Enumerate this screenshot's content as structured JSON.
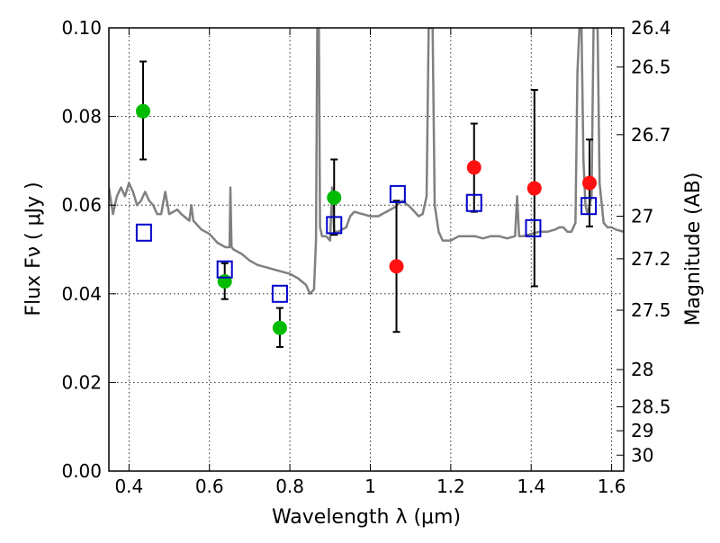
{
  "chart_data": {
    "type": "scatter",
    "xlabel": "Wavelength  λ (μm)",
    "ylabel": "Flux  Fν  ( μJy )",
    "ylabel_right": "Magnitude (AB)",
    "xlim": [
      0.35,
      1.63
    ],
    "ylim": [
      0.0,
      0.1
    ],
    "grid": true,
    "x_ticks": [
      0.4,
      0.6,
      0.8,
      1.0,
      1.2,
      1.4,
      1.6
    ],
    "x_tick_labels": [
      "0.4",
      "0.6",
      "0.8",
      "1",
      "1.2",
      "1.4",
      "1.6"
    ],
    "y_ticks": [
      0.0,
      0.02,
      0.04,
      0.06,
      0.08,
      0.1
    ],
    "y_tick_labels": [
      "0.00",
      "0.02",
      "0.04",
      "0.06",
      "0.08",
      "0.10"
    ],
    "right_axis_ticks": [
      {
        "label": "26.4",
        "flux": 0.1
      },
      {
        "label": "26.5",
        "flux": 0.0912
      },
      {
        "label": "26.7",
        "flux": 0.0759
      },
      {
        "label": "27",
        "flux": 0.0575
      },
      {
        "label": "27.2",
        "flux": 0.0479
      },
      {
        "label": "27.5",
        "flux": 0.0363
      },
      {
        "label": "28",
        "flux": 0.0229
      },
      {
        "label": "28.5",
        "flux": 0.0145
      },
      {
        "label": "29",
        "flux": 0.0091
      },
      {
        "label": "30",
        "flux": 0.0036
      }
    ],
    "series": [
      {
        "marker": "circle",
        "color": "#00bb00",
        "points": [
          {
            "x": 0.435,
            "y": 0.0812,
            "err": [
              0.0703,
              0.0924
            ]
          },
          {
            "x": 0.638,
            "y": 0.0428,
            "err": [
              0.0388,
              0.0469
            ]
          },
          {
            "x": 0.775,
            "y": 0.0323,
            "err": [
              0.028,
              0.0368
            ]
          },
          {
            "x": 0.91,
            "y": 0.0617,
            "err": [
              0.0533,
              0.0703
            ]
          }
        ]
      },
      {
        "marker": "circle",
        "color": "#ff1111",
        "points": [
          {
            "x": 1.065,
            "y": 0.0462,
            "err": [
              0.0314,
              0.061
            ]
          },
          {
            "x": 1.258,
            "y": 0.0685,
            "err": [
              0.0585,
              0.0784
            ]
          },
          {
            "x": 1.408,
            "y": 0.0638,
            "err": [
              0.0417,
              0.086
            ]
          },
          {
            "x": 1.545,
            "y": 0.065,
            "err": [
              0.0552,
              0.0748
            ]
          }
        ]
      },
      {
        "marker": "open-square",
        "color": "#0000cc",
        "points": [
          {
            "x": 0.437,
            "y": 0.0538
          },
          {
            "x": 0.638,
            "y": 0.0455
          },
          {
            "x": 0.775,
            "y": 0.04
          },
          {
            "x": 0.91,
            "y": 0.0555
          },
          {
            "x": 1.068,
            "y": 0.0625
          },
          {
            "x": 1.258,
            "y": 0.0605
          },
          {
            "x": 1.405,
            "y": 0.0548
          },
          {
            "x": 1.543,
            "y": 0.0598
          }
        ]
      },
      {
        "marker": "line",
        "color": "#808080",
        "points": [
          [
            0.35,
            0.064
          ],
          [
            0.355,
            0.061
          ],
          [
            0.36,
            0.058
          ],
          [
            0.37,
            0.062
          ],
          [
            0.38,
            0.064
          ],
          [
            0.39,
            0.062
          ],
          [
            0.4,
            0.065
          ],
          [
            0.41,
            0.063
          ],
          [
            0.42,
            0.06
          ],
          [
            0.43,
            0.061
          ],
          [
            0.44,
            0.063
          ],
          [
            0.45,
            0.061
          ],
          [
            0.46,
            0.06
          ],
          [
            0.47,
            0.058
          ],
          [
            0.48,
            0.058
          ],
          [
            0.49,
            0.063
          ],
          [
            0.5,
            0.058
          ],
          [
            0.52,
            0.059
          ],
          [
            0.53,
            0.058
          ],
          [
            0.55,
            0.0565
          ],
          [
            0.555,
            0.06
          ],
          [
            0.56,
            0.0565
          ],
          [
            0.58,
            0.0545
          ],
          [
            0.6,
            0.0535
          ],
          [
            0.62,
            0.0515
          ],
          [
            0.64,
            0.0505
          ],
          [
            0.65,
            0.0505
          ],
          [
            0.652,
            0.064
          ],
          [
            0.655,
            0.0505
          ],
          [
            0.66,
            0.05
          ],
          [
            0.68,
            0.049
          ],
          [
            0.7,
            0.0475
          ],
          [
            0.72,
            0.0465
          ],
          [
            0.74,
            0.046
          ],
          [
            0.76,
            0.0455
          ],
          [
            0.78,
            0.045
          ],
          [
            0.8,
            0.0445
          ],
          [
            0.82,
            0.0435
          ],
          [
            0.84,
            0.042
          ],
          [
            0.85,
            0.04
          ],
          [
            0.86,
            0.041
          ],
          [
            0.865,
            0.052
          ],
          [
            0.868,
            0.1
          ],
          [
            0.872,
            0.1
          ],
          [
            0.875,
            0.055
          ],
          [
            0.88,
            0.053
          ],
          [
            0.89,
            0.053
          ],
          [
            0.9,
            0.052
          ],
          [
            0.905,
            0.064
          ],
          [
            0.91,
            0.054
          ],
          [
            0.92,
            0.054
          ],
          [
            0.93,
            0.0545
          ],
          [
            0.94,
            0.055
          ],
          [
            0.95,
            0.0575
          ],
          [
            0.96,
            0.0585
          ],
          [
            0.98,
            0.058
          ],
          [
            1.0,
            0.0575
          ],
          [
            1.02,
            0.0575
          ],
          [
            1.04,
            0.0585
          ],
          [
            1.06,
            0.0595
          ],
          [
            1.08,
            0.061
          ],
          [
            1.1,
            0.0595
          ],
          [
            1.12,
            0.0575
          ],
          [
            1.13,
            0.058
          ],
          [
            1.14,
            0.062
          ],
          [
            1.145,
            0.1
          ],
          [
            1.155,
            0.1
          ],
          [
            1.16,
            0.06
          ],
          [
            1.17,
            0.054
          ],
          [
            1.18,
            0.052
          ],
          [
            1.2,
            0.052
          ],
          [
            1.22,
            0.053
          ],
          [
            1.24,
            0.053
          ],
          [
            1.26,
            0.053
          ],
          [
            1.28,
            0.0525
          ],
          [
            1.3,
            0.053
          ],
          [
            1.32,
            0.053
          ],
          [
            1.34,
            0.0525
          ],
          [
            1.36,
            0.053
          ],
          [
            1.365,
            0.062
          ],
          [
            1.37,
            0.053
          ],
          [
            1.38,
            0.053
          ],
          [
            1.4,
            0.0535
          ],
          [
            1.42,
            0.054
          ],
          [
            1.44,
            0.054
          ],
          [
            1.46,
            0.0545
          ],
          [
            1.47,
            0.055
          ],
          [
            1.48,
            0.055
          ],
          [
            1.49,
            0.054
          ],
          [
            1.5,
            0.054
          ],
          [
            1.51,
            0.056
          ],
          [
            1.515,
            0.09
          ],
          [
            1.52,
            0.1
          ],
          [
            1.525,
            0.1
          ],
          [
            1.53,
            0.07
          ],
          [
            1.535,
            0.06
          ],
          [
            1.54,
            0.058
          ],
          [
            1.55,
            0.062
          ],
          [
            1.555,
            0.1
          ],
          [
            1.565,
            0.1
          ],
          [
            1.57,
            0.065
          ],
          [
            1.58,
            0.056
          ],
          [
            1.59,
            0.055
          ],
          [
            1.6,
            0.055
          ],
          [
            1.61,
            0.0545
          ],
          [
            1.63,
            0.054
          ]
        ]
      }
    ]
  }
}
